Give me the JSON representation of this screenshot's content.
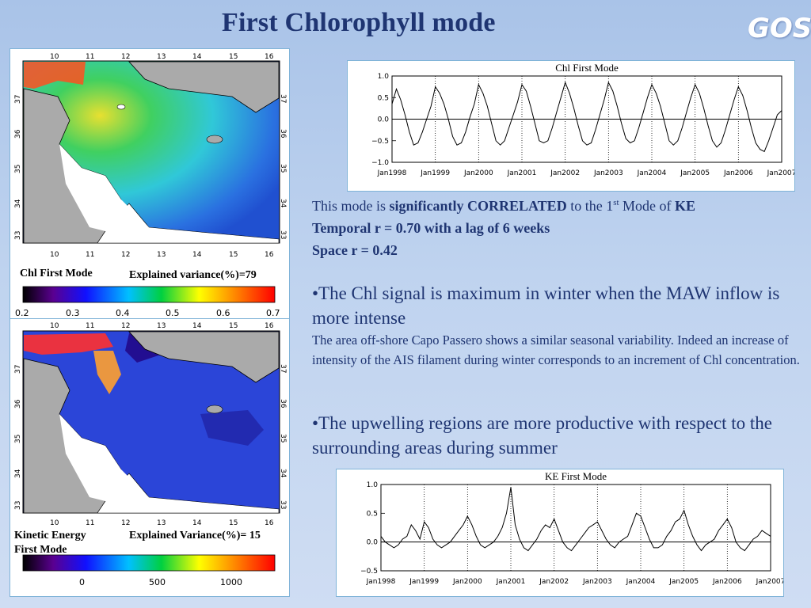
{
  "slide": {
    "title": "First Chlorophyll  mode",
    "logo": "GOS"
  },
  "map_top": {
    "lon_ticks": [
      "10",
      "11",
      "12",
      "13",
      "14",
      "15",
      "16"
    ],
    "lat_ticks": [
      "37",
      "36",
      "35",
      "34",
      "33"
    ],
    "caption": "Chl First Mode",
    "variance_label": "Explained variance(%)=79",
    "colorbar_ticks": [
      "0.2",
      "0.3",
      "0.4",
      "0.5",
      "0.6",
      "0.7"
    ]
  },
  "map_bottom": {
    "lon_ticks": [
      "10",
      "11",
      "12",
      "13",
      "14",
      "15",
      "16"
    ],
    "lat_ticks": [
      "37",
      "36",
      "35",
      "34",
      "33"
    ],
    "caption_line1": "Kinetic Energy",
    "caption_line2": "First Mode",
    "variance_label": "Explained Variance(%)= 15",
    "colorbar_ticks": [
      "0",
      "500",
      "1000"
    ]
  },
  "chart_data": [
    {
      "type": "line",
      "title": "Chl First Mode",
      "x_ticks": [
        "Jan1998",
        "Jan1999",
        "Jan2000",
        "Jan2001",
        "Jan2002",
        "Jan2003",
        "Jan2004",
        "Jan2005",
        "Jan2006",
        "Jan2007"
      ],
      "y_ticks": [
        "1.0",
        "0.5",
        "0.0",
        "−0.5",
        "−1.0"
      ],
      "ylim": [
        -1.0,
        1.0
      ],
      "xlim": [
        1998.0,
        2007.0
      ],
      "series": [
        {
          "x": [
            1998.0,
            1998.1,
            1998.2,
            1998.3,
            1998.4,
            1998.5,
            1998.6,
            1998.7,
            1998.8,
            1998.9,
            1999.0,
            1999.1,
            1999.2,
            1999.3,
            1999.4,
            1999.5,
            1999.6,
            1999.7,
            1999.8,
            1999.9,
            2000.0,
            2000.1,
            2000.2,
            2000.3,
            2000.4,
            2000.5,
            2000.6,
            2000.7,
            2000.8,
            2000.9,
            2001.0,
            2001.1,
            2001.2,
            2001.3,
            2001.4,
            2001.5,
            2001.6,
            2001.7,
            2001.8,
            2001.9,
            2002.0,
            2002.1,
            2002.2,
            2002.3,
            2002.4,
            2002.5,
            2002.6,
            2002.7,
            2002.8,
            2002.9,
            2003.0,
            2003.1,
            2003.2,
            2003.3,
            2003.4,
            2003.5,
            2003.6,
            2003.7,
            2003.8,
            2003.9,
            2004.0,
            2004.1,
            2004.2,
            2004.3,
            2004.4,
            2004.5,
            2004.6,
            2004.7,
            2004.8,
            2004.9,
            2005.0,
            2005.1,
            2005.2,
            2005.3,
            2005.4,
            2005.5,
            2005.6,
            2005.7,
            2005.8,
            2005.9,
            2006.0,
            2006.1,
            2006.2,
            2006.3,
            2006.4,
            2006.5,
            2006.6,
            2006.7,
            2006.8,
            2006.9,
            2007.0
          ],
          "y": [
            0.35,
            0.7,
            0.45,
            0.1,
            -0.3,
            -0.6,
            -0.55,
            -0.3,
            0.0,
            0.3,
            0.75,
            0.6,
            0.35,
            0.0,
            -0.4,
            -0.6,
            -0.55,
            -0.3,
            0.05,
            0.35,
            0.8,
            0.6,
            0.3,
            -0.1,
            -0.5,
            -0.6,
            -0.5,
            -0.2,
            0.1,
            0.4,
            0.8,
            0.65,
            0.3,
            -0.1,
            -0.5,
            -0.55,
            -0.5,
            -0.2,
            0.15,
            0.5,
            0.85,
            0.6,
            0.25,
            -0.15,
            -0.5,
            -0.6,
            -0.55,
            -0.25,
            0.1,
            0.45,
            0.85,
            0.65,
            0.3,
            -0.1,
            -0.45,
            -0.55,
            -0.5,
            -0.2,
            0.15,
            0.5,
            0.8,
            0.6,
            0.3,
            -0.1,
            -0.5,
            -0.6,
            -0.5,
            -0.2,
            0.15,
            0.5,
            0.8,
            0.6,
            0.25,
            -0.15,
            -0.5,
            -0.65,
            -0.55,
            -0.25,
            0.1,
            0.45,
            0.75,
            0.55,
            0.2,
            -0.2,
            -0.55,
            -0.7,
            -0.75,
            -0.5,
            -0.2,
            0.1,
            0.2
          ]
        }
      ]
    },
    {
      "type": "line",
      "title": "KE First Mode",
      "x_ticks": [
        "Jan1998",
        "Jan1999",
        "Jan2000",
        "Jan2001",
        "Jan2002",
        "Jan2003",
        "Jan2004",
        "Jan2005",
        "Jan2006",
        "Jan2007"
      ],
      "y_ticks": [
        "1.0",
        "0.5",
        "0.0",
        "−0.5"
      ],
      "ylim": [
        -0.5,
        1.0
      ],
      "xlim": [
        1998.0,
        2007.0
      ],
      "series": [
        {
          "x": [
            1998.0,
            1998.1,
            1998.2,
            1998.3,
            1998.4,
            1998.5,
            1998.6,
            1998.7,
            1998.8,
            1998.9,
            1999.0,
            1999.1,
            1999.2,
            1999.3,
            1999.4,
            1999.5,
            1999.6,
            1999.7,
            1999.8,
            1999.9,
            2000.0,
            2000.1,
            2000.2,
            2000.3,
            2000.4,
            2000.5,
            2000.6,
            2000.7,
            2000.8,
            2000.9,
            2001.0,
            2001.1,
            2001.2,
            2001.3,
            2001.4,
            2001.5,
            2001.6,
            2001.7,
            2001.8,
            2001.9,
            2002.0,
            2002.1,
            2002.2,
            2002.3,
            2002.4,
            2002.5,
            2002.6,
            2002.7,
            2002.8,
            2002.9,
            2003.0,
            2003.1,
            2003.2,
            2003.3,
            2003.4,
            2003.5,
            2003.6,
            2003.7,
            2003.8,
            2003.9,
            2004.0,
            2004.1,
            2004.2,
            2004.3,
            2004.4,
            2004.5,
            2004.6,
            2004.7,
            2004.8,
            2004.9,
            2005.0,
            2005.1,
            2005.2,
            2005.3,
            2005.4,
            2005.5,
            2005.6,
            2005.7,
            2005.8,
            2005.9,
            2006.0,
            2006.1,
            2006.2,
            2006.3,
            2006.4,
            2006.5,
            2006.6,
            2006.7,
            2006.8,
            2006.9,
            2007.0
          ],
          "y": [
            0.1,
            0.0,
            -0.05,
            -0.1,
            -0.05,
            0.05,
            0.1,
            0.3,
            0.2,
            0.05,
            0.35,
            0.25,
            0.05,
            -0.05,
            -0.1,
            -0.05,
            0.0,
            0.1,
            0.2,
            0.3,
            0.45,
            0.3,
            0.1,
            -0.05,
            -0.1,
            -0.05,
            0.0,
            0.1,
            0.25,
            0.5,
            0.95,
            0.3,
            0.05,
            -0.1,
            -0.15,
            -0.05,
            0.05,
            0.2,
            0.3,
            0.25,
            0.4,
            0.2,
            0.0,
            -0.1,
            -0.15,
            -0.05,
            0.05,
            0.15,
            0.25,
            0.3,
            0.35,
            0.2,
            0.05,
            -0.05,
            -0.1,
            0.0,
            0.05,
            0.1,
            0.3,
            0.5,
            0.45,
            0.25,
            0.05,
            -0.1,
            -0.1,
            -0.05,
            0.1,
            0.2,
            0.35,
            0.4,
            0.55,
            0.3,
            0.1,
            -0.05,
            -0.15,
            -0.05,
            0.0,
            0.05,
            0.2,
            0.3,
            0.4,
            0.25,
            0.0,
            -0.1,
            -0.15,
            -0.05,
            0.05,
            0.1,
            0.2,
            0.15,
            0.1
          ]
        }
      ]
    }
  ],
  "text": {
    "p1_pre": "This mode is ",
    "p1_bold": "significantly CORRELATED",
    "p1_mid": " to the 1",
    "p1_sup": "st",
    "p1_post": " Mode of ",
    "p1_ke": "KE",
    "p2": "Temporal r = 0.70 with a lag of 6 weeks",
    "p3": "Space r = 0.42",
    "bullet1": "•The Chl signal is maximum in winter when the MAW inflow is more intense",
    "small": "The area off-shore Capo Passero shows a similar seasonal variability. Indeed an increase of intensity of the AIS filament during winter corresponds to an increment of Chl concentration.",
    "bullet2": "•The upwelling regions are more productive with respect to the surrounding areas during summer"
  },
  "colors": {
    "title": "#1f3572",
    "text": "#1f3572",
    "land": "#aaaaaa",
    "panel_border": "#7fb3d8"
  }
}
